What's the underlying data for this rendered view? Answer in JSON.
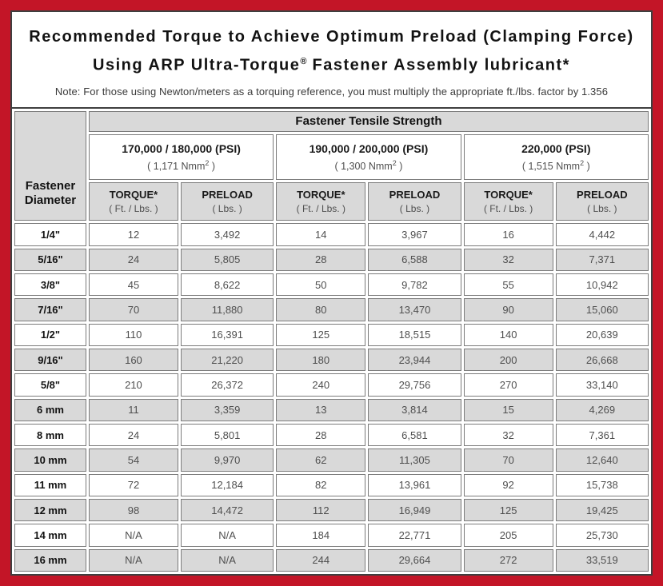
{
  "colors": {
    "frame_red": "#c31527",
    "box_border": "#3f3f3f",
    "cell_border": "#7b7b7b",
    "gray_fill": "#d9d9d9",
    "value_text": "#4f4f4f",
    "heading_text": "#121212"
  },
  "header": {
    "title_line1": "Recommended Torque to Achieve Optimum Preload (Clamping Force)",
    "title_line2_pre": "Using ARP Ultra-Torque",
    "title_line2_sup": "®",
    "title_line2_post": " Fastener Assembly lubricant*",
    "note": "Note: For those using Newton/meters as a torquing reference, you must multiply the appropriate ft./lbs. factor by 1.356"
  },
  "table": {
    "corner_header": "Fastener Diameter",
    "tensile_header": "Fastener Tensile Strength",
    "groups": [
      {
        "psi": "170,000 / 180,000 (PSI)",
        "nmm_pre": "( 1,171 Nmm",
        "nmm_sup": "2",
        "nmm_post": " )"
      },
      {
        "psi": "190,000 / 200,000 (PSI)",
        "nmm_pre": "( 1,300 Nmm",
        "nmm_sup": "2",
        "nmm_post": " )"
      },
      {
        "psi": "220,000 (PSI)",
        "nmm_pre": "( 1,515 Nmm",
        "nmm_sup": "2",
        "nmm_post": " )"
      }
    ],
    "torque_label": "TORQUE*",
    "torque_unit": "( Ft. / Lbs. )",
    "preload_label": "PRELOAD",
    "preload_unit": "( Lbs. )",
    "rows": [
      {
        "diameter": "1/4\"",
        "values": [
          "12",
          "3,492",
          "14",
          "3,967",
          "16",
          "4,442"
        ]
      },
      {
        "diameter": "5/16\"",
        "values": [
          "24",
          "5,805",
          "28",
          "6,588",
          "32",
          "7,371"
        ]
      },
      {
        "diameter": "3/8\"",
        "values": [
          "45",
          "8,622",
          "50",
          "9,782",
          "55",
          "10,942"
        ]
      },
      {
        "diameter": "7/16\"",
        "values": [
          "70",
          "11,880",
          "80",
          "13,470",
          "90",
          "15,060"
        ]
      },
      {
        "diameter": "1/2\"",
        "values": [
          "110",
          "16,391",
          "125",
          "18,515",
          "140",
          "20,639"
        ]
      },
      {
        "diameter": "9/16\"",
        "values": [
          "160",
          "21,220",
          "180",
          "23,944",
          "200",
          "26,668"
        ]
      },
      {
        "diameter": "5/8\"",
        "values": [
          "210",
          "26,372",
          "240",
          "29,756",
          "270",
          "33,140"
        ]
      },
      {
        "diameter": "6 mm",
        "values": [
          "11",
          "3,359",
          "13",
          "3,814",
          "15",
          "4,269"
        ]
      },
      {
        "diameter": "8 mm",
        "values": [
          "24",
          "5,801",
          "28",
          "6,581",
          "32",
          "7,361"
        ]
      },
      {
        "diameter": "10 mm",
        "values": [
          "54",
          "9,970",
          "62",
          "11,305",
          "70",
          "12,640"
        ]
      },
      {
        "diameter": "11 mm",
        "values": [
          "72",
          "12,184",
          "82",
          "13,961",
          "92",
          "15,738"
        ]
      },
      {
        "diameter": "12 mm",
        "values": [
          "98",
          "14,472",
          "112",
          "16,949",
          "125",
          "19,425"
        ]
      },
      {
        "diameter": "14 mm",
        "values": [
          "N/A",
          "N/A",
          "184",
          "22,771",
          "205",
          "25,730"
        ]
      },
      {
        "diameter": "16 mm",
        "values": [
          "N/A",
          "N/A",
          "244",
          "29,664",
          "272",
          "33,519"
        ]
      }
    ]
  }
}
